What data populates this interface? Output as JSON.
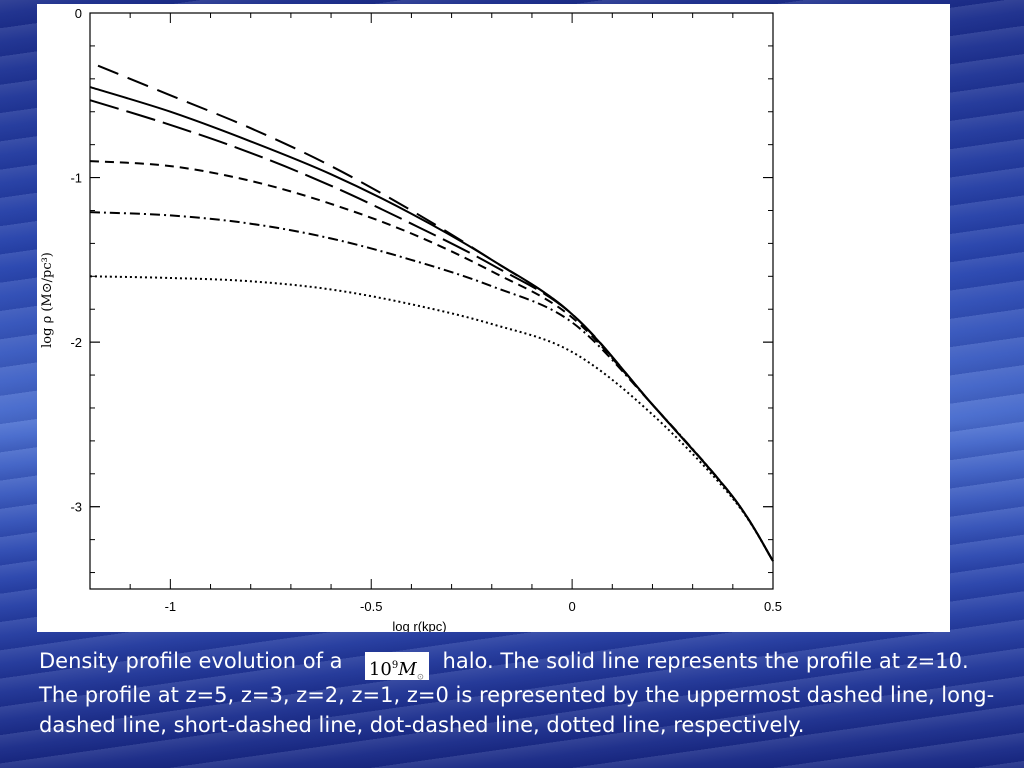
{
  "chart_data": {
    "type": "line",
    "xlabel": "log r(kpc)",
    "ylabel": "log ρ (M⊙/pc³)",
    "xlim": [
      -1.2,
      0.5
    ],
    "ylim": [
      -3.5,
      0
    ],
    "x_ticks": [
      -1,
      -0.5,
      0,
      0.5
    ],
    "x_tick_labels": [
      "-1",
      "-0.5",
      "0",
      "0.5"
    ],
    "y_ticks": [
      0,
      -1,
      -2,
      -3
    ],
    "y_tick_labels": [
      "0",
      "-1",
      "-2",
      "-3"
    ],
    "grid": false,
    "series": [
      {
        "style": "solid",
        "x": [
          -1.2,
          -1.0,
          -0.8,
          -0.6,
          -0.4,
          -0.2,
          0.0,
          0.2,
          0.4,
          0.5
        ],
        "y": [
          -0.45,
          -0.6,
          -0.78,
          -0.98,
          -1.22,
          -1.5,
          -1.83,
          -2.38,
          -2.94,
          -3.33
        ]
      },
      {
        "style": "dashed",
        "x": [
          -1.18,
          -1.0,
          -0.8,
          -0.6,
          -0.4,
          -0.2,
          0.0,
          0.2,
          0.4,
          0.5
        ],
        "y": [
          -0.32,
          -0.5,
          -0.7,
          -0.93,
          -1.2,
          -1.5,
          -1.83,
          -2.38,
          -2.94,
          -3.33
        ]
      },
      {
        "style": "long-dashed",
        "x": [
          -1.2,
          -1.0,
          -0.8,
          -0.6,
          -0.4,
          -0.2,
          0.0,
          0.2,
          0.4,
          0.5
        ],
        "y": [
          -0.53,
          -0.68,
          -0.85,
          -1.05,
          -1.28,
          -1.53,
          -1.83,
          -2.38,
          -2.94,
          -3.33
        ]
      },
      {
        "style": "short-dashed",
        "x": [
          -1.2,
          -1.0,
          -0.8,
          -0.6,
          -0.4,
          -0.2,
          0.0,
          0.2,
          0.4,
          0.5
        ],
        "y": [
          -0.9,
          -0.93,
          -1.02,
          -1.16,
          -1.34,
          -1.57,
          -1.85,
          -2.38,
          -2.94,
          -3.33
        ]
      },
      {
        "style": "dot-dashed",
        "x": [
          -1.2,
          -1.0,
          -0.8,
          -0.6,
          -0.4,
          -0.2,
          0.0,
          0.2,
          0.4,
          0.5
        ],
        "y": [
          -1.21,
          -1.23,
          -1.28,
          -1.37,
          -1.5,
          -1.66,
          -1.88,
          -2.38,
          -2.94,
          -3.33
        ]
      },
      {
        "style": "dotted",
        "x": [
          -1.2,
          -1.0,
          -0.8,
          -0.6,
          -0.4,
          -0.2,
          0.0,
          0.2,
          0.4,
          0.5
        ],
        "y": [
          -1.6,
          -1.61,
          -1.63,
          -1.68,
          -1.77,
          -1.89,
          -2.06,
          -2.44,
          -2.95,
          -3.33
        ]
      }
    ]
  },
  "caption": {
    "before": "Density profile evolution of a",
    "mass_mantissa": "10",
    "mass_exponent": "9",
    "mass_symbol": "M",
    "mass_subscript": "⊙",
    "after": "halo. The solid line represents the profile at z=10. The profile at z=5, z=3, z=2, z=1, z=0 is represented by the uppermost dashed line, long-dashed line, short-dashed line, dot-dashed line, dotted line, respectively."
  }
}
